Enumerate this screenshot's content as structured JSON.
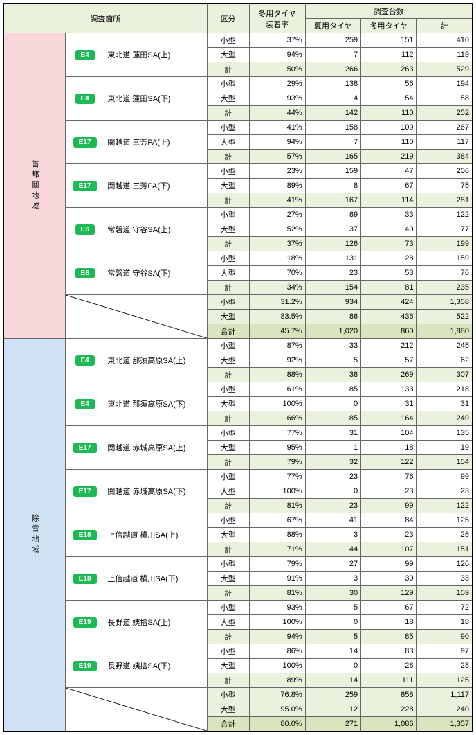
{
  "headers": {
    "survey_point": "調査箇所",
    "category": "区分",
    "winter_rate": "冬用タイヤ\n装着率",
    "survey_count": "調査台数",
    "summer": "夏用タイヤ",
    "winter": "冬用タイヤ",
    "total": "計"
  },
  "regions": [
    {
      "name": "首都圏地域",
      "bg_class": "region-pink",
      "locations": [
        {
          "badge": "E4",
          "name": "東北道 蓮田SA(上)",
          "rows": [
            [
              "小型",
              "37%",
              259,
              151,
              410
            ],
            [
              "大型",
              "94%",
              7,
              112,
              119
            ],
            [
              "計",
              "50%",
              266,
              263,
              529
            ]
          ]
        },
        {
          "badge": "E4",
          "name": "東北道 蓮田SA(下)",
          "rows": [
            [
              "小型",
              "29%",
              138,
              56,
              194
            ],
            [
              "大型",
              "93%",
              4,
              54,
              58
            ],
            [
              "計",
              "44%",
              142,
              110,
              252
            ]
          ]
        },
        {
          "badge": "E17",
          "name": "関越道 三芳PA(上)",
          "rows": [
            [
              "小型",
              "41%",
              158,
              109,
              267
            ],
            [
              "大型",
              "94%",
              7,
              110,
              117
            ],
            [
              "計",
              "57%",
              165,
              219,
              384
            ]
          ]
        },
        {
          "badge": "E17",
          "name": "関越道 三芳PA(下)",
          "rows": [
            [
              "小型",
              "23%",
              159,
              47,
              206
            ],
            [
              "大型",
              "89%",
              8,
              67,
              75
            ],
            [
              "計",
              "41%",
              167,
              114,
              281
            ]
          ]
        },
        {
          "badge": "E6",
          "name": "常磐道 守谷SA(上)",
          "rows": [
            [
              "小型",
              "27%",
              89,
              33,
              122
            ],
            [
              "大型",
              "52%",
              37,
              40,
              77
            ],
            [
              "計",
              "37%",
              126,
              73,
              199
            ]
          ]
        },
        {
          "badge": "E6",
          "name": "常磐道 守谷SA(下)",
          "rows": [
            [
              "小型",
              "18%",
              131,
              28,
              159
            ],
            [
              "大型",
              "70%",
              23,
              53,
              76
            ],
            [
              "計",
              "34%",
              154,
              81,
              235
            ]
          ]
        }
      ],
      "totals": [
        [
          "小型",
          "31.2%",
          "934",
          "424",
          "1,358"
        ],
        [
          "大型",
          "83.5%",
          "86",
          "436",
          "522"
        ],
        [
          "合計",
          "45.7%",
          "1,020",
          "860",
          "1,880"
        ]
      ]
    },
    {
      "name": "除雪地域",
      "bg_class": "region-blue",
      "locations": [
        {
          "badge": "E4",
          "name": "東北道 那須高原SA(上)",
          "rows": [
            [
              "小型",
              "87%",
              33,
              212,
              245
            ],
            [
              "大型",
              "92%",
              5,
              57,
              62
            ],
            [
              "計",
              "88%",
              38,
              269,
              307
            ]
          ]
        },
        {
          "badge": "E4",
          "name": "東北道 那須高原SA(下)",
          "rows": [
            [
              "小型",
              "61%",
              85,
              133,
              218
            ],
            [
              "大型",
              "100%",
              0,
              31,
              31
            ],
            [
              "計",
              "66%",
              85,
              164,
              249
            ]
          ]
        },
        {
          "badge": "E17",
          "name": "関越道 赤城高原SA(上)",
          "rows": [
            [
              "小型",
              "77%",
              31,
              104,
              135
            ],
            [
              "大型",
              "95%",
              1,
              18,
              19
            ],
            [
              "計",
              "79%",
              32,
              122,
              154
            ]
          ]
        },
        {
          "badge": "E17",
          "name": "関越道 赤城高原SA(下)",
          "rows": [
            [
              "小型",
              "77%",
              23,
              76,
              99
            ],
            [
              "大型",
              "100%",
              0,
              23,
              23
            ],
            [
              "計",
              "81%",
              23,
              99,
              122
            ]
          ]
        },
        {
          "badge": "E18",
          "name": "上信越道 横川SA(上)",
          "rows": [
            [
              "小型",
              "67%",
              41,
              84,
              125
            ],
            [
              "大型",
              "88%",
              3,
              23,
              26
            ],
            [
              "計",
              "71%",
              44,
              107,
              151
            ]
          ]
        },
        {
          "badge": "E18",
          "name": "上信越道 横川SA(下)",
          "rows": [
            [
              "小型",
              "79%",
              27,
              99,
              126
            ],
            [
              "大型",
              "91%",
              3,
              30,
              33
            ],
            [
              "計",
              "81%",
              30,
              129,
              159
            ]
          ]
        },
        {
          "badge": "E19",
          "name": "長野道 姨捨SA(上)",
          "rows": [
            [
              "小型",
              "93%",
              5,
              67,
              72
            ],
            [
              "大型",
              "100%",
              0,
              18,
              18
            ],
            [
              "計",
              "94%",
              5,
              85,
              90
            ]
          ]
        },
        {
          "badge": "E19",
          "name": "長野道 姨捨SA(下)",
          "rows": [
            [
              "小型",
              "86%",
              14,
              83,
              97
            ],
            [
              "大型",
              "100%",
              0,
              28,
              28
            ],
            [
              "計",
              "89%",
              14,
              111,
              125
            ]
          ]
        }
      ],
      "totals": [
        [
          "小型",
          "76.8%",
          "259",
          "858",
          "1,117"
        ],
        [
          "大型",
          "95.0%",
          "12",
          "228",
          "240"
        ],
        [
          "合計",
          "80.0%",
          "271",
          "1,086",
          "1,357"
        ]
      ]
    }
  ]
}
